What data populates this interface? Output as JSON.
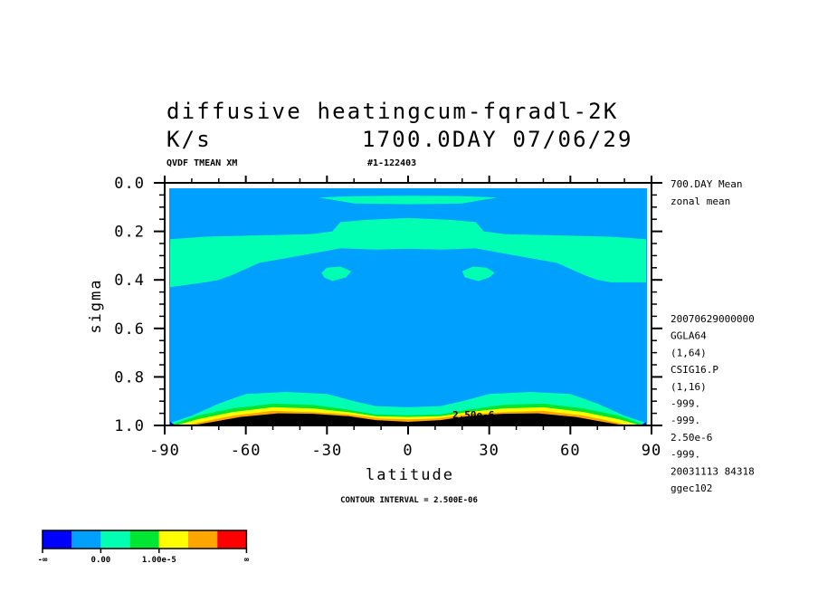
{
  "title_line1": "diffusive heatingcum-fqradl-2K",
  "unit_label": "K/s",
  "date_label": "1700.0DAY 07/06/29",
  "var_label": "QVDF TMEAN XM",
  "run_label": "#1-122403",
  "side_info": [
    "700.DAY Mean",
    "zonal mean"
  ],
  "meta_info": [
    "20070629000000",
    "GGLA64",
    "(1,64)",
    "CSIG16.P",
    "(1,16)",
    "-999.",
    "-999.",
    "2.50e-6",
    "-999.",
    "20031113  84318",
    "ggec102"
  ],
  "contour_label": "CONTOUR INTERVAL = 2.500E-06",
  "inline_label": "2.50e-6",
  "colors": {
    "c1": "#0000ff",
    "c2": "#00a0ff",
    "c3": "#00ffb3",
    "c4": "#00e632",
    "c5": "#ffff00",
    "c6": "#ffa500",
    "c7": "#ff0000",
    "black": "#000000"
  },
  "colorbar": {
    "colors": [
      "#0000ff",
      "#00a0ff",
      "#00ffb3",
      "#00e632",
      "#ffff00",
      "#ffa500",
      "#ff0000"
    ],
    "labels": [
      "-∞",
      "0.00",
      "1.00e-5",
      "∞"
    ]
  },
  "chart_data": {
    "type": "contour",
    "xlabel": "latitude",
    "ylabel": "sigma",
    "xlim": [
      -90,
      90
    ],
    "ylim": [
      1.0,
      0.0
    ],
    "x_ticks": [
      -90,
      -60,
      -30,
      0,
      30,
      60,
      90
    ],
    "x_tick_labels": [
      "-90",
      "-60",
      "-30",
      "0",
      "30",
      "60",
      "90"
    ],
    "y_ticks": [
      0.0,
      0.2,
      0.4,
      0.6,
      0.8,
      1.0
    ],
    "y_tick_labels": [
      "0.0",
      "0.2",
      "0.4",
      "0.6",
      "0.8",
      "1.0"
    ],
    "contour_interval": 2.5e-06,
    "regions": [
      {
        "level": "c3",
        "outline": [
          [
            -88,
            0.232
          ],
          [
            -75,
            0.222
          ],
          [
            -60,
            0.218
          ],
          [
            -45,
            0.214
          ],
          [
            -36,
            0.212
          ],
          [
            -28,
            0.2
          ],
          [
            -25,
            0.162
          ],
          [
            -15,
            0.152
          ],
          [
            0,
            0.145
          ],
          [
            15,
            0.152
          ],
          [
            25,
            0.162
          ],
          [
            28,
            0.2
          ],
          [
            36,
            0.212
          ],
          [
            45,
            0.214
          ],
          [
            60,
            0.218
          ],
          [
            75,
            0.222
          ],
          [
            88,
            0.232
          ],
          [
            88,
            0.41
          ],
          [
            75,
            0.41
          ],
          [
            70,
            0.4
          ],
          [
            65,
            0.38
          ],
          [
            55,
            0.33
          ],
          [
            45,
            0.31
          ],
          [
            35,
            0.29
          ],
          [
            25,
            0.27
          ],
          [
            12,
            0.275
          ],
          [
            0,
            0.272
          ],
          [
            -12,
            0.275
          ],
          [
            -25,
            0.27
          ],
          [
            -35,
            0.29
          ],
          [
            -45,
            0.31
          ],
          [
            -55,
            0.33
          ],
          [
            -65,
            0.38
          ],
          [
            -70,
            0.4
          ],
          [
            -75,
            0.41
          ],
          [
            -88,
            0.43
          ]
        ]
      },
      {
        "level": "c3",
        "outline": [
          [
            -33,
            0.06
          ],
          [
            -20,
            0.055
          ],
          [
            0,
            0.053
          ],
          [
            20,
            0.055
          ],
          [
            33,
            0.06
          ],
          [
            20,
            0.085
          ],
          [
            0,
            0.088
          ],
          [
            -20,
            0.085
          ]
        ]
      },
      {
        "level": "c3",
        "outline": [
          [
            -30,
            0.35
          ],
          [
            -25,
            0.345
          ],
          [
            -21,
            0.365
          ],
          [
            -23,
            0.39
          ],
          [
            -28,
            0.405
          ],
          [
            -31,
            0.39
          ],
          [
            -32,
            0.37
          ]
        ]
      },
      {
        "level": "c3",
        "outline": [
          [
            20,
            0.365
          ],
          [
            24,
            0.345
          ],
          [
            29,
            0.35
          ],
          [
            32,
            0.37
          ],
          [
            30,
            0.39
          ],
          [
            26,
            0.405
          ],
          [
            21,
            0.39
          ]
        ]
      },
      {
        "level": "c3",
        "outline": [
          [
            -88,
            0.99
          ],
          [
            -80,
            0.96
          ],
          [
            -70,
            0.91
          ],
          [
            -60,
            0.87
          ],
          [
            -45,
            0.862
          ],
          [
            -30,
            0.87
          ],
          [
            -20,
            0.9
          ],
          [
            -12,
            0.92
          ],
          [
            0,
            0.925
          ],
          [
            12,
            0.92
          ],
          [
            20,
            0.9
          ],
          [
            30,
            0.87
          ],
          [
            45,
            0.862
          ],
          [
            60,
            0.87
          ],
          [
            70,
            0.91
          ],
          [
            80,
            0.96
          ],
          [
            88,
            0.99
          ],
          [
            88,
            1.0
          ],
          [
            -88,
            1.0
          ]
        ]
      },
      {
        "level": "c4",
        "outline": [
          [
            -87,
            0.995
          ],
          [
            -78,
            0.96
          ],
          [
            -65,
            0.93
          ],
          [
            -50,
            0.91
          ],
          [
            -35,
            0.915
          ],
          [
            -22,
            0.935
          ],
          [
            -12,
            0.955
          ],
          [
            0,
            0.958
          ],
          [
            12,
            0.955
          ],
          [
            22,
            0.935
          ],
          [
            35,
            0.915
          ],
          [
            50,
            0.91
          ],
          [
            65,
            0.93
          ],
          [
            78,
            0.96
          ],
          [
            87,
            0.995
          ],
          [
            87,
            1.0
          ],
          [
            -87,
            1.0
          ]
        ]
      },
      {
        "level": "c5",
        "outline": [
          [
            -86,
            1.0
          ],
          [
            -78,
            0.975
          ],
          [
            -65,
            0.945
          ],
          [
            -50,
            0.925
          ],
          [
            -35,
            0.93
          ],
          [
            -22,
            0.945
          ],
          [
            -12,
            0.962
          ],
          [
            0,
            0.965
          ],
          [
            12,
            0.962
          ],
          [
            22,
            0.945
          ],
          [
            35,
            0.93
          ],
          [
            50,
            0.925
          ],
          [
            65,
            0.945
          ],
          [
            78,
            0.975
          ],
          [
            86,
            1.0
          ]
        ]
      },
      {
        "level": "c6",
        "outline": [
          [
            -82,
            1.0
          ],
          [
            -75,
            0.983
          ],
          [
            -65,
            0.96
          ],
          [
            -50,
            0.94
          ],
          [
            -35,
            0.945
          ],
          [
            -22,
            0.955
          ],
          [
            -10,
            0.972
          ],
          [
            0,
            0.975
          ],
          [
            10,
            0.972
          ],
          [
            22,
            0.955
          ],
          [
            35,
            0.945
          ],
          [
            50,
            0.94
          ],
          [
            65,
            0.96
          ],
          [
            75,
            0.983
          ],
          [
            82,
            1.0
          ]
        ]
      },
      {
        "level": "black",
        "outline": [
          [
            -80,
            1.0
          ],
          [
            -72,
            0.985
          ],
          [
            -62,
            0.965
          ],
          [
            -48,
            0.95
          ],
          [
            -35,
            0.952
          ],
          [
            -22,
            0.962
          ],
          [
            -12,
            0.978
          ],
          [
            0,
            0.985
          ],
          [
            12,
            0.978
          ],
          [
            22,
            0.962
          ],
          [
            35,
            0.952
          ],
          [
            48,
            0.95
          ],
          [
            62,
            0.965
          ],
          [
            72,
            0.985
          ],
          [
            80,
            1.0
          ]
        ]
      },
      {
        "level": "c1",
        "outline": [
          [
            -88,
            0.985
          ],
          [
            -86,
            1.0
          ],
          [
            -88,
            1.0
          ]
        ]
      },
      {
        "level": "c1",
        "outline": [
          [
            88,
            0.985
          ],
          [
            86,
            1.0
          ],
          [
            88,
            1.0
          ]
        ]
      }
    ],
    "background_level": "c2"
  }
}
